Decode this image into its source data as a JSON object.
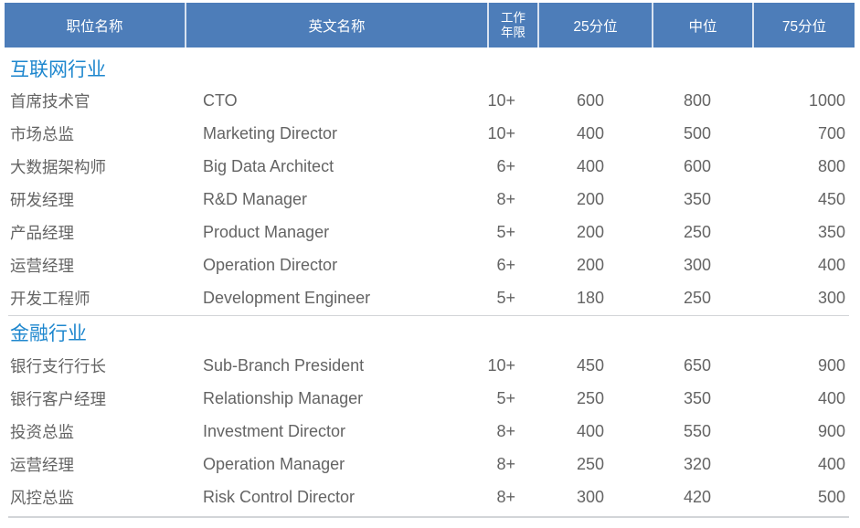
{
  "colors": {
    "header_bg": "#4D7DB9",
    "header_text": "#FFFFFF",
    "header_divider": "rgba(255,255,255,0.78)",
    "section_title_text": "#1E87CE",
    "body_text": "#646464",
    "separator_line": "#D2D5D8"
  },
  "table": {
    "columns": [
      {
        "id": "position_zh",
        "label": "职位名称"
      },
      {
        "id": "position_en",
        "label": "英文名称"
      },
      {
        "id": "years",
        "label": "工作年限",
        "line1": "工作",
        "line2": "年限"
      },
      {
        "id": "p25",
        "label": "25分位"
      },
      {
        "id": "median",
        "label": "中位"
      },
      {
        "id": "p75",
        "label": "75分位"
      }
    ],
    "sections": [
      {
        "title": "互联网行业",
        "rows": [
          {
            "position_zh": "首席技术官",
            "position_en": "CTO",
            "years": "10+",
            "p25": 600,
            "median": 800,
            "p75": 1000
          },
          {
            "position_zh": "市场总监",
            "position_en": "Marketing Director",
            "years": "10+",
            "p25": 400,
            "median": 500,
            "p75": 700
          },
          {
            "position_zh": "大数据架构师",
            "position_en": "Big Data Architect",
            "years": "6+",
            "p25": 400,
            "median": 600,
            "p75": 800
          },
          {
            "position_zh": "研发经理",
            "position_en": "R&D Manager",
            "years": "8+",
            "p25": 200,
            "median": 350,
            "p75": 450
          },
          {
            "position_zh": "产品经理",
            "position_en": "Product Manager",
            "years": "5+",
            "p25": 200,
            "median": 250,
            "p75": 350
          },
          {
            "position_zh": "运营经理",
            "position_en": "Operation Director",
            "years": "6+",
            "p25": 200,
            "median": 300,
            "p75": 400
          },
          {
            "position_zh": "开发工程师",
            "position_en": "Development Engineer",
            "years": "5+",
            "p25": 180,
            "median": 250,
            "p75": 300
          }
        ]
      },
      {
        "title": "金融行业",
        "rows": [
          {
            "position_zh": "银行支行行长",
            "position_en": "Sub-Branch President",
            "years": "10+",
            "p25": 450,
            "median": 650,
            "p75": 900
          },
          {
            "position_zh": "银行客户经理",
            "position_en": "Relationship Manager",
            "years": "5+",
            "p25": 250,
            "median": 350,
            "p75": 400
          },
          {
            "position_zh": "投资总监",
            "position_en": "Investment Director",
            "years": "8+",
            "p25": 400,
            "median": 550,
            "p75": 900
          },
          {
            "position_zh": "运营经理",
            "position_en": "Operation Manager",
            "years": "8+",
            "p25": 250,
            "median": 320,
            "p75": 400
          },
          {
            "position_zh": "风控总监",
            "position_en": "Risk Control Director",
            "years": "8+",
            "p25": 300,
            "median": 420,
            "p75": 500
          }
        ]
      }
    ]
  }
}
